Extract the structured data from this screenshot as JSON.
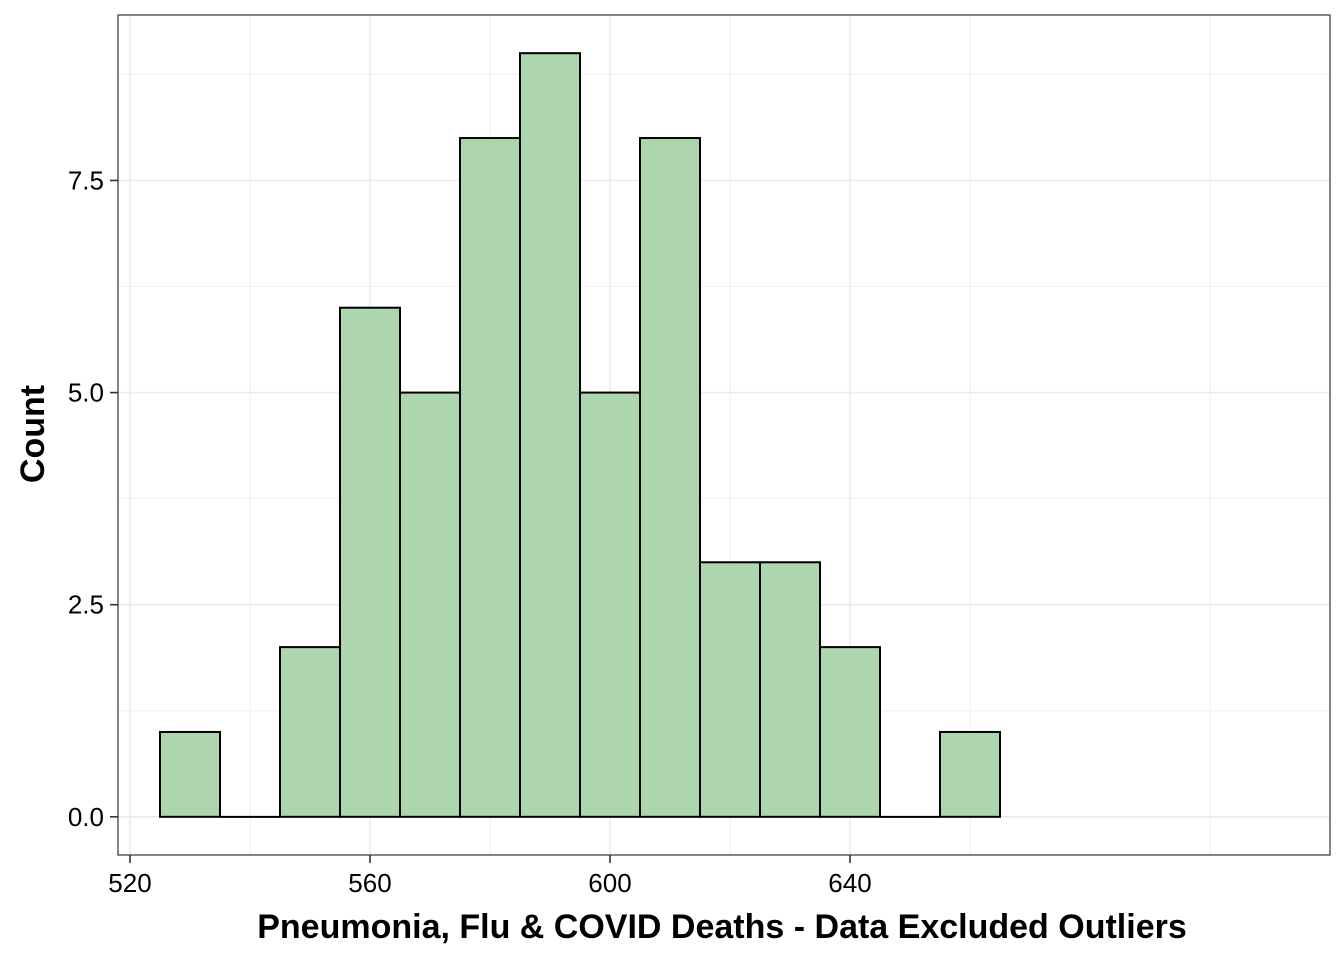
{
  "chart_data": {
    "type": "bar",
    "subtype": "histogram",
    "title": "",
    "xlabel": "Pneumonia, Flu & COVID Deaths - Data Excluded Outliers",
    "ylabel": "Count",
    "bin_width": 10,
    "bins": [
      {
        "x0": 525,
        "x1": 535,
        "count": 1
      },
      {
        "x0": 535,
        "x1": 545,
        "count": 0
      },
      {
        "x0": 545,
        "x1": 555,
        "count": 2
      },
      {
        "x0": 555,
        "x1": 565,
        "count": 6
      },
      {
        "x0": 565,
        "x1": 575,
        "count": 5
      },
      {
        "x0": 575,
        "x1": 585,
        "count": 8
      },
      {
        "x0": 585,
        "x1": 595,
        "count": 9
      },
      {
        "x0": 595,
        "x1": 605,
        "count": 5
      },
      {
        "x0": 605,
        "x1": 615,
        "count": 8
      },
      {
        "x0": 615,
        "x1": 625,
        "count": 3
      },
      {
        "x0": 625,
        "x1": 635,
        "count": 3
      },
      {
        "x0": 635,
        "x1": 645,
        "count": 2
      },
      {
        "x0": 645,
        "x1": 655,
        "count": 0
      },
      {
        "x0": 655,
        "x1": 665,
        "count": 1
      }
    ],
    "xlim": [
      518,
      720
    ],
    "ylim": [
      -0.45,
      9.45
    ],
    "x_ticks": [
      520,
      560,
      600,
      640
    ],
    "x_tick_labels": [
      "520",
      "560",
      "600",
      "640"
    ],
    "y_ticks": [
      0,
      2.5,
      5,
      7.5
    ],
    "y_tick_labels": [
      "0.0",
      "2.5",
      "5.0",
      "7.5"
    ],
    "grid": true,
    "fill_color": "#aed6ae",
    "edge_color": "#000000",
    "grid_color": "#ebebeb",
    "panel_border_color": "#333333"
  }
}
